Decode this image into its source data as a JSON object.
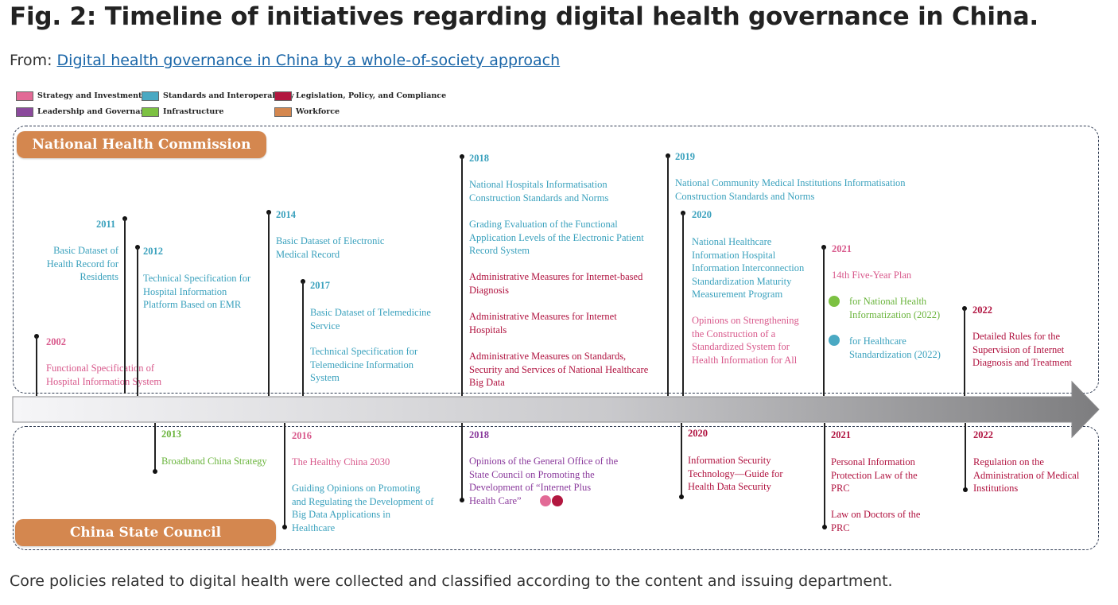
{
  "title": "Fig. 2: Timeline of initiatives regarding digital health governance in China.",
  "from_label": "From:",
  "from_link": "Digital health governance in China by a whole-of-society approach",
  "caption": "Core policies related to digital health were collected and classified according to the content and issuing department.",
  "colors": {
    "strategy": "#e26a96",
    "leadership": "#8b4a9c",
    "standards": "#4aa9c3",
    "infrastructure": "#7cc142",
    "legislation": "#b2173f",
    "workforce": "#d4874f",
    "arrow": "#8f8f8f"
  },
  "legend": [
    {
      "label": "Strategy and Investment",
      "color": "#e26a96"
    },
    {
      "label": "Standards and Interoperability",
      "color": "#4aa9c3"
    },
    {
      "label": "Legislation, Policy, and Compliance",
      "color": "#b2173f"
    },
    {
      "label": "Leadership and Governance",
      "color": "#8b4a9c"
    },
    {
      "label": "Infrastructure",
      "color": "#7cc142"
    },
    {
      "label": "Workforce",
      "color": "#d4874f"
    }
  ],
  "nhc_label": "National Health Commission",
  "state_council_label": "China State Council",
  "nhc_events": [
    {
      "year": "2002",
      "items": [
        "Functional Specification of\nHospital Information System"
      ]
    },
    {
      "year": "2011",
      "items": [
        "Basic Dataset of\nHealth Record for\nResidents"
      ]
    },
    {
      "year": "2012",
      "items": [
        "Technical Specification for\nHospital Information\nPlatform Based on EMR"
      ]
    },
    {
      "year": "2014",
      "items": [
        "Basic Dataset of Electronic\nMedical Record"
      ]
    },
    {
      "year": "2017",
      "items": [
        "Basic Dataset of Telemedicine\nService",
        "Technical Specification for\nTelemedicine Information\nSystem"
      ]
    },
    {
      "year": "2018",
      "items": [
        "National Hospitals Informatisation\nConstruction Standards and Norms",
        "Grading Evaluation of the Functional\nApplication Levels of the Electronic Patient\nRecord System",
        "Administrative Measures for Internet-based\nDiagnosis",
        "Administrative Measures for Internet\nHospitals",
        "Administrative Measures on Standards,\nSecurity and Services of National Healthcare\nBig Data"
      ]
    },
    {
      "year": "2019",
      "items": [
        "National Community Medical Institutions Informatisation\nConstruction Standards and Norms"
      ]
    },
    {
      "year": "2020",
      "items": [
        "National Healthcare\nInformation Hospital\nInformation Interconnection\nStandardization Maturity\nMeasurement Program",
        "Opinions on Strengthening\nthe Construction of a\nStandardized System for\nHealth Information for All"
      ]
    },
    {
      "year": "2021",
      "items": [
        "14th Five-Year Plan",
        "for National Health\nInformatization (2022)",
        "for Healthcare\nStandardization (2022)"
      ]
    },
    {
      "year": "2022",
      "items": [
        "Detailed Rules for the\nSupervision of Internet\nDiagnosis and Treatment"
      ]
    }
  ],
  "sc_events": [
    {
      "year": "2013",
      "items": [
        "Broadband China Strategy"
      ]
    },
    {
      "year": "2016",
      "items": [
        "The Healthy China 2030",
        "Guiding Opinions on Promoting\nand Regulating the Development of\nBig Data Applications in\nHealthcare"
      ]
    },
    {
      "year": "2018",
      "items": [
        "Opinions of the General Office of the\nState Council on Promoting the\nDevelopment of “Internet Plus\nHealth Care”"
      ]
    },
    {
      "year": "2020",
      "items": [
        "Information Security\nTechnology—Guide for\nHealth Data Security"
      ]
    },
    {
      "year": "2021",
      "items": [
        "Personal Information\nProtection Law of the\nPRC",
        "Law on Doctors of the\nPRC"
      ]
    },
    {
      "year": "2022",
      "items": [
        "Regulation on the\nAdministration of Medical\nInstitutions"
      ]
    }
  ]
}
